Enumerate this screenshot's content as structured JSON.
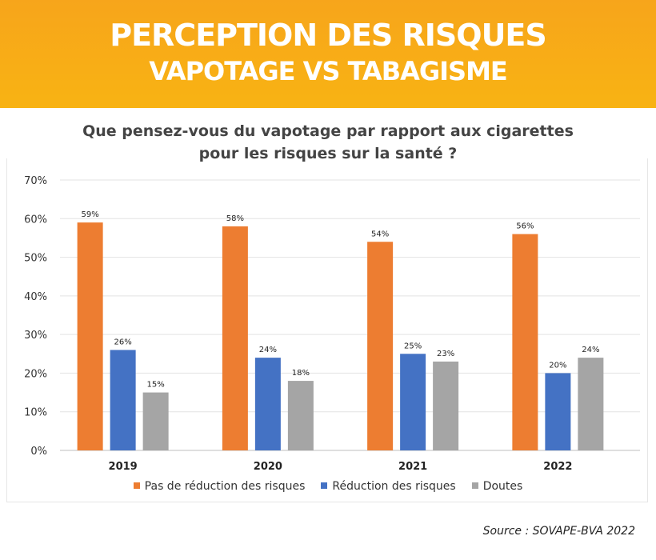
{
  "header": {
    "title_line1": "PERCEPTION DES RISQUES",
    "title_line2": "VAPOTAGE VS TABAGISME",
    "background_color": "#f8ac17"
  },
  "question": {
    "line1": "Que pensez-vous du vapotage par rapport aux cigarettes",
    "line2": "pour les risques sur la santé ?"
  },
  "source": "Source : SOVAPE-BVA 2022",
  "chart_data": {
    "type": "bar",
    "title": "Que pensez-vous du vapotage par rapport aux cigarettes pour les risques sur la santé ?",
    "categories": [
      "2019",
      "2020",
      "2021",
      "2022"
    ],
    "ylim": [
      0,
      70
    ],
    "yticks": [
      0,
      10,
      20,
      30,
      40,
      50,
      60,
      70
    ],
    "ytick_suffix": "%",
    "grid": true,
    "legend_position": "bottom",
    "series": [
      {
        "name": "Pas de réduction des risques",
        "color": "#ed7d31",
        "values": [
          59,
          58,
          54,
          56
        ],
        "labels": [
          "59%",
          "58%",
          "54%",
          "56%"
        ]
      },
      {
        "name": "Réduction des risques",
        "color": "#4472c4",
        "values": [
          26,
          24,
          25,
          20
        ],
        "labels": [
          "26%",
          "24%",
          "25%",
          "20%"
        ]
      },
      {
        "name": "Doutes",
        "color": "#a5a5a5",
        "values": [
          15,
          18,
          23,
          24
        ],
        "labels": [
          "15%",
          "18%",
          "23%",
          "24%"
        ]
      }
    ]
  }
}
